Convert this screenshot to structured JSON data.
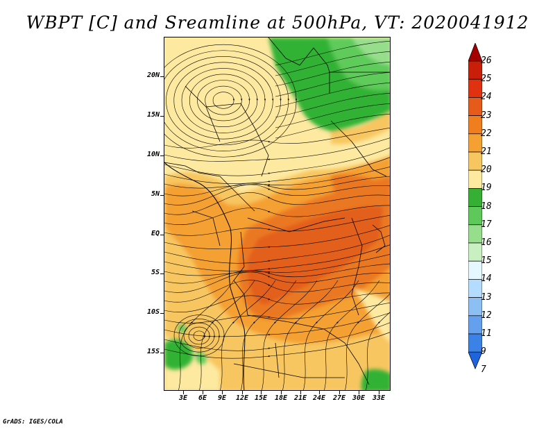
{
  "title": "WBPT [C] and Sreamline at 500hPa, VT: 2020041912",
  "footer": "GrADS: IGES/COLA",
  "map": {
    "lat_labels": [
      "20N",
      "15N",
      "10N",
      "5N",
      "EQ",
      "5S",
      "10S",
      "15S"
    ],
    "lon_labels": [
      "3E",
      "6E",
      "9E",
      "12E",
      "15E",
      "18E",
      "21E",
      "24E",
      "27E",
      "30E",
      "33E"
    ]
  },
  "colorbar": {
    "labels": [
      "26",
      "25",
      "24",
      "23",
      "22",
      "21",
      "20",
      "19",
      "18",
      "17",
      "16",
      "15",
      "14",
      "13",
      "12",
      "11",
      "9",
      "7"
    ],
    "colors": [
      "#a50000",
      "#c81e0a",
      "#e03210",
      "#e65a1a",
      "#f07e1e",
      "#f5a032",
      "#f8c660",
      "#fde9a0",
      "#35b035",
      "#5fc85a",
      "#96de8c",
      "#c8f0c0",
      "#e6f8ff",
      "#b4dcff",
      "#8cc0f5",
      "#64a0ee",
      "#3c82e6",
      "#1e64dc"
    ]
  },
  "colors": {
    "green_dark": "#33b234",
    "green_mid": "#5ecb5a",
    "green_light": "#96de8c",
    "yellow": "#fde9a0",
    "orange_light": "#f8c660",
    "orange": "#f5a032",
    "orange_deep": "#ea7820",
    "red_orange": "#e25e1c"
  }
}
